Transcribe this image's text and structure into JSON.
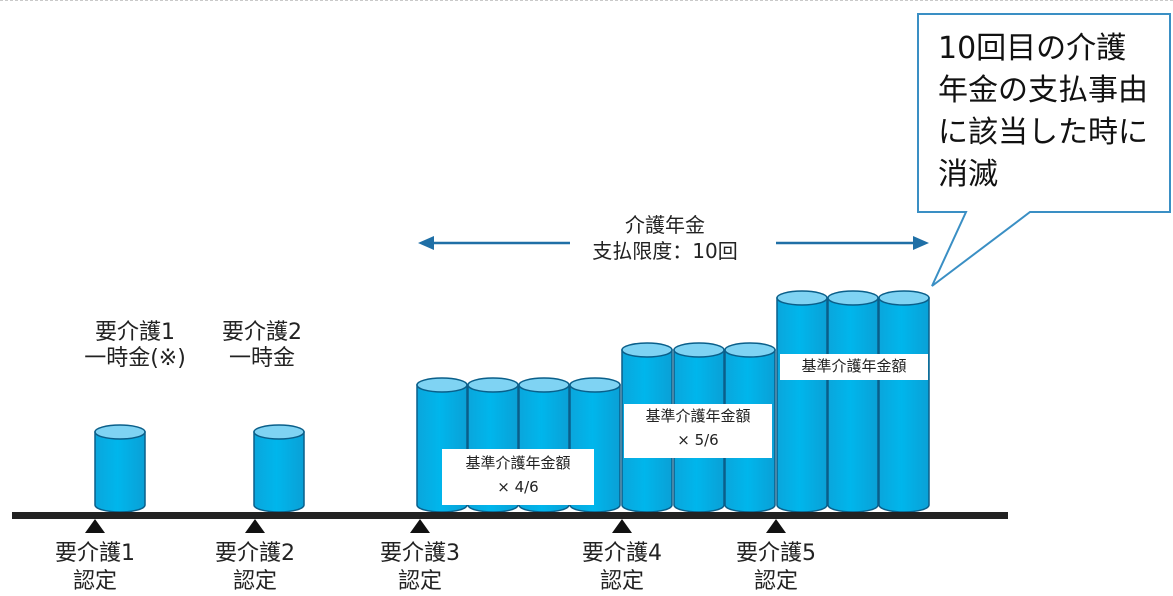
{
  "callout": {
    "lines": [
      "10回目の介護",
      "年金の支払事由",
      "に該当した時に",
      "消滅"
    ]
  },
  "pension_range": {
    "line1": "介護年金",
    "line2": "支払限度：10回"
  },
  "lump_sums": [
    {
      "line1": "要介護1",
      "line2": "一時金(※)"
    },
    {
      "line1": "要介護2",
      "line2": "一時金"
    }
  ],
  "amount_boxes": [
    {
      "line1": "基準介護年金額",
      "line2": "× 4/6"
    },
    {
      "line1": "基準介護年金額",
      "line2": "× 5/6"
    },
    {
      "line1": "基準介護年金額",
      "line2": ""
    }
  ],
  "milestones": [
    {
      "line1": "要介護1",
      "line2": "認定"
    },
    {
      "line1": "要介護2",
      "line2": "認定"
    },
    {
      "line1": "要介護3",
      "line2": "認定"
    },
    {
      "line1": "要介護4",
      "line2": "認定"
    },
    {
      "line1": "要介護5",
      "line2": "認定"
    }
  ],
  "colors": {
    "cylinder_body": "#00b2e8",
    "cylinder_top": "#7fd3f3",
    "cylinder_stroke": "#0a5f8a",
    "arrow": "#1f6fa6",
    "callout_stroke": "#3a8fc4"
  }
}
